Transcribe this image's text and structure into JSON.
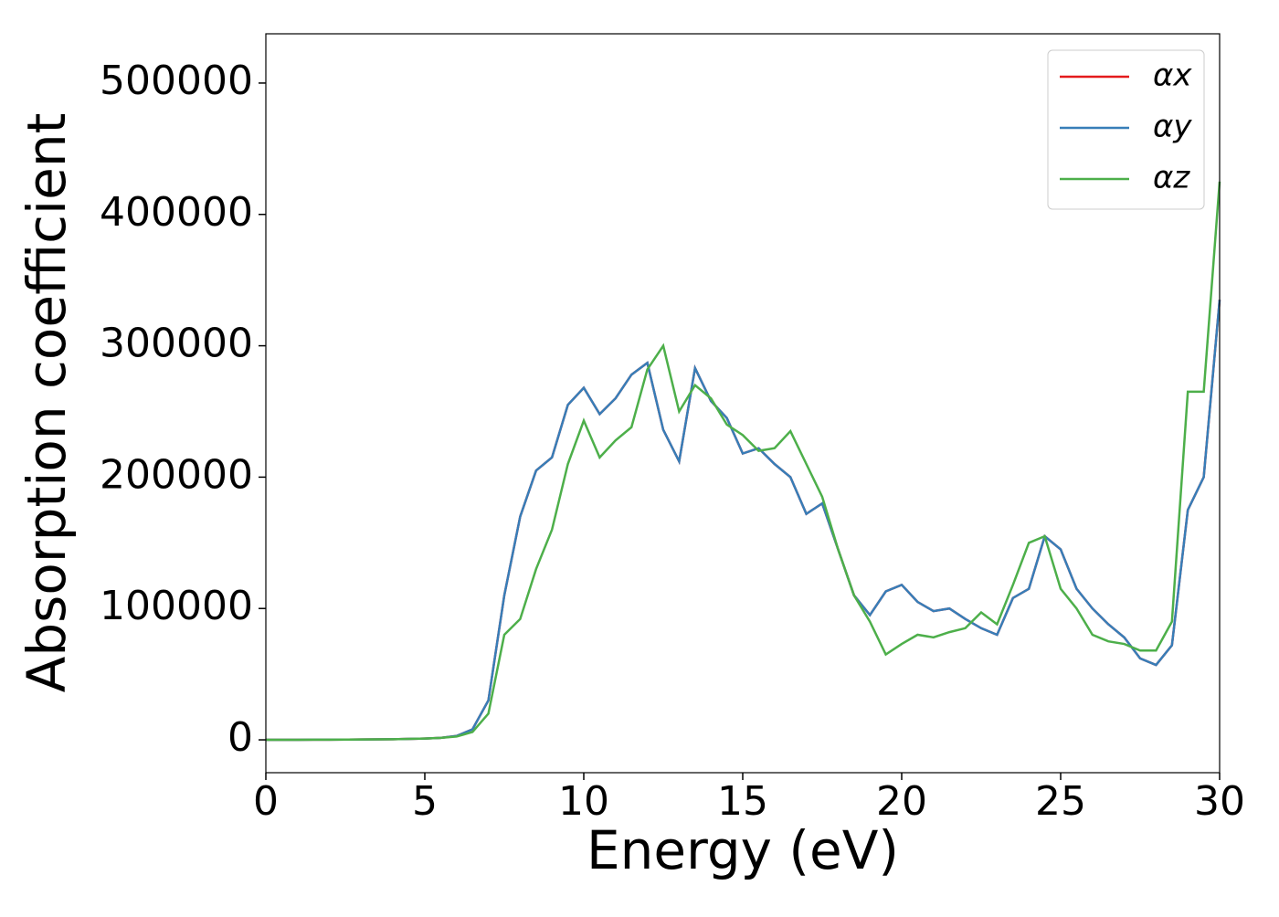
{
  "chart_data": {
    "type": "line",
    "x_label": "Energy (eV)",
    "y_label": "Absorption coefficient",
    "x": [
      0,
      0.5,
      1,
      1.5,
      2,
      2.5,
      3,
      3.5,
      4,
      4.5,
      5,
      5.5,
      6,
      6.5,
      7,
      7.5,
      8,
      8.5,
      9,
      9.5,
      10,
      10.5,
      11,
      11.5,
      12,
      12.5,
      13,
      13.5,
      14,
      14.5,
      15,
      15.5,
      16,
      16.5,
      17,
      17.5,
      18,
      18.5,
      19,
      19.5,
      20,
      20.5,
      21,
      21.5,
      22,
      22.5,
      23,
      23.5,
      24,
      24.5,
      25,
      25.5,
      26,
      26.5,
      27,
      27.5,
      28,
      28.5,
      29,
      29.5,
      30
    ],
    "series": [
      {
        "name": "αx",
        "color": "#e41a1c",
        "values": [
          0,
          0,
          0,
          100,
          100,
          200,
          300,
          400,
          500,
          700,
          1000,
          1500,
          3000,
          8000,
          30000,
          110000,
          170000,
          205000,
          215000,
          255000,
          268000,
          248000,
          260000,
          278000,
          287000,
          236000,
          212000,
          283000,
          258000,
          245000,
          218000,
          222000,
          210000,
          200000,
          172000,
          180000,
          145000,
          110000,
          95000,
          113000,
          118000,
          105000,
          98000,
          100000,
          92000,
          85000,
          80000,
          108000,
          115000,
          155000,
          145000,
          115000,
          100000,
          88000,
          78000,
          62000,
          57000,
          72000,
          175000,
          200000,
          335000
        ]
      },
      {
        "name": "αy",
        "color": "#377eb8",
        "values": [
          0,
          0,
          0,
          100,
          100,
          200,
          300,
          400,
          500,
          700,
          1000,
          1500,
          3000,
          8000,
          30000,
          110000,
          170000,
          205000,
          215000,
          255000,
          268000,
          248000,
          260000,
          278000,
          287000,
          236000,
          212000,
          283000,
          258000,
          245000,
          218000,
          222000,
          210000,
          200000,
          172000,
          180000,
          145000,
          110000,
          95000,
          113000,
          118000,
          105000,
          98000,
          100000,
          92000,
          85000,
          80000,
          108000,
          115000,
          155000,
          145000,
          115000,
          100000,
          88000,
          78000,
          62000,
          57000,
          72000,
          175000,
          200000,
          335000
        ]
      },
      {
        "name": "αz",
        "color": "#4daf4a",
        "values": [
          0,
          0,
          0,
          100,
          100,
          200,
          300,
          400,
          500,
          700,
          1000,
          1500,
          2500,
          6000,
          20000,
          80000,
          92000,
          130000,
          160000,
          210000,
          243000,
          215000,
          228000,
          238000,
          282000,
          300000,
          250000,
          270000,
          260000,
          240000,
          232000,
          220000,
          222000,
          235000,
          210000,
          185000,
          145000,
          110000,
          90000,
          65000,
          73000,
          80000,
          78000,
          82000,
          85000,
          97000,
          88000,
          118000,
          150000,
          155000,
          115000,
          100000,
          80000,
          75000,
          73000,
          68000,
          68000,
          90000,
          265000,
          265000,
          425000
        ]
      }
    ],
    "xlim": [
      0,
      30
    ],
    "xticks": [
      0,
      5,
      10,
      15,
      20,
      25,
      30
    ],
    "ylim": [
      -25000,
      537500
    ],
    "yticks": [
      0,
      100000,
      200000,
      300000,
      400000,
      500000
    ],
    "legend": "upper right"
  }
}
